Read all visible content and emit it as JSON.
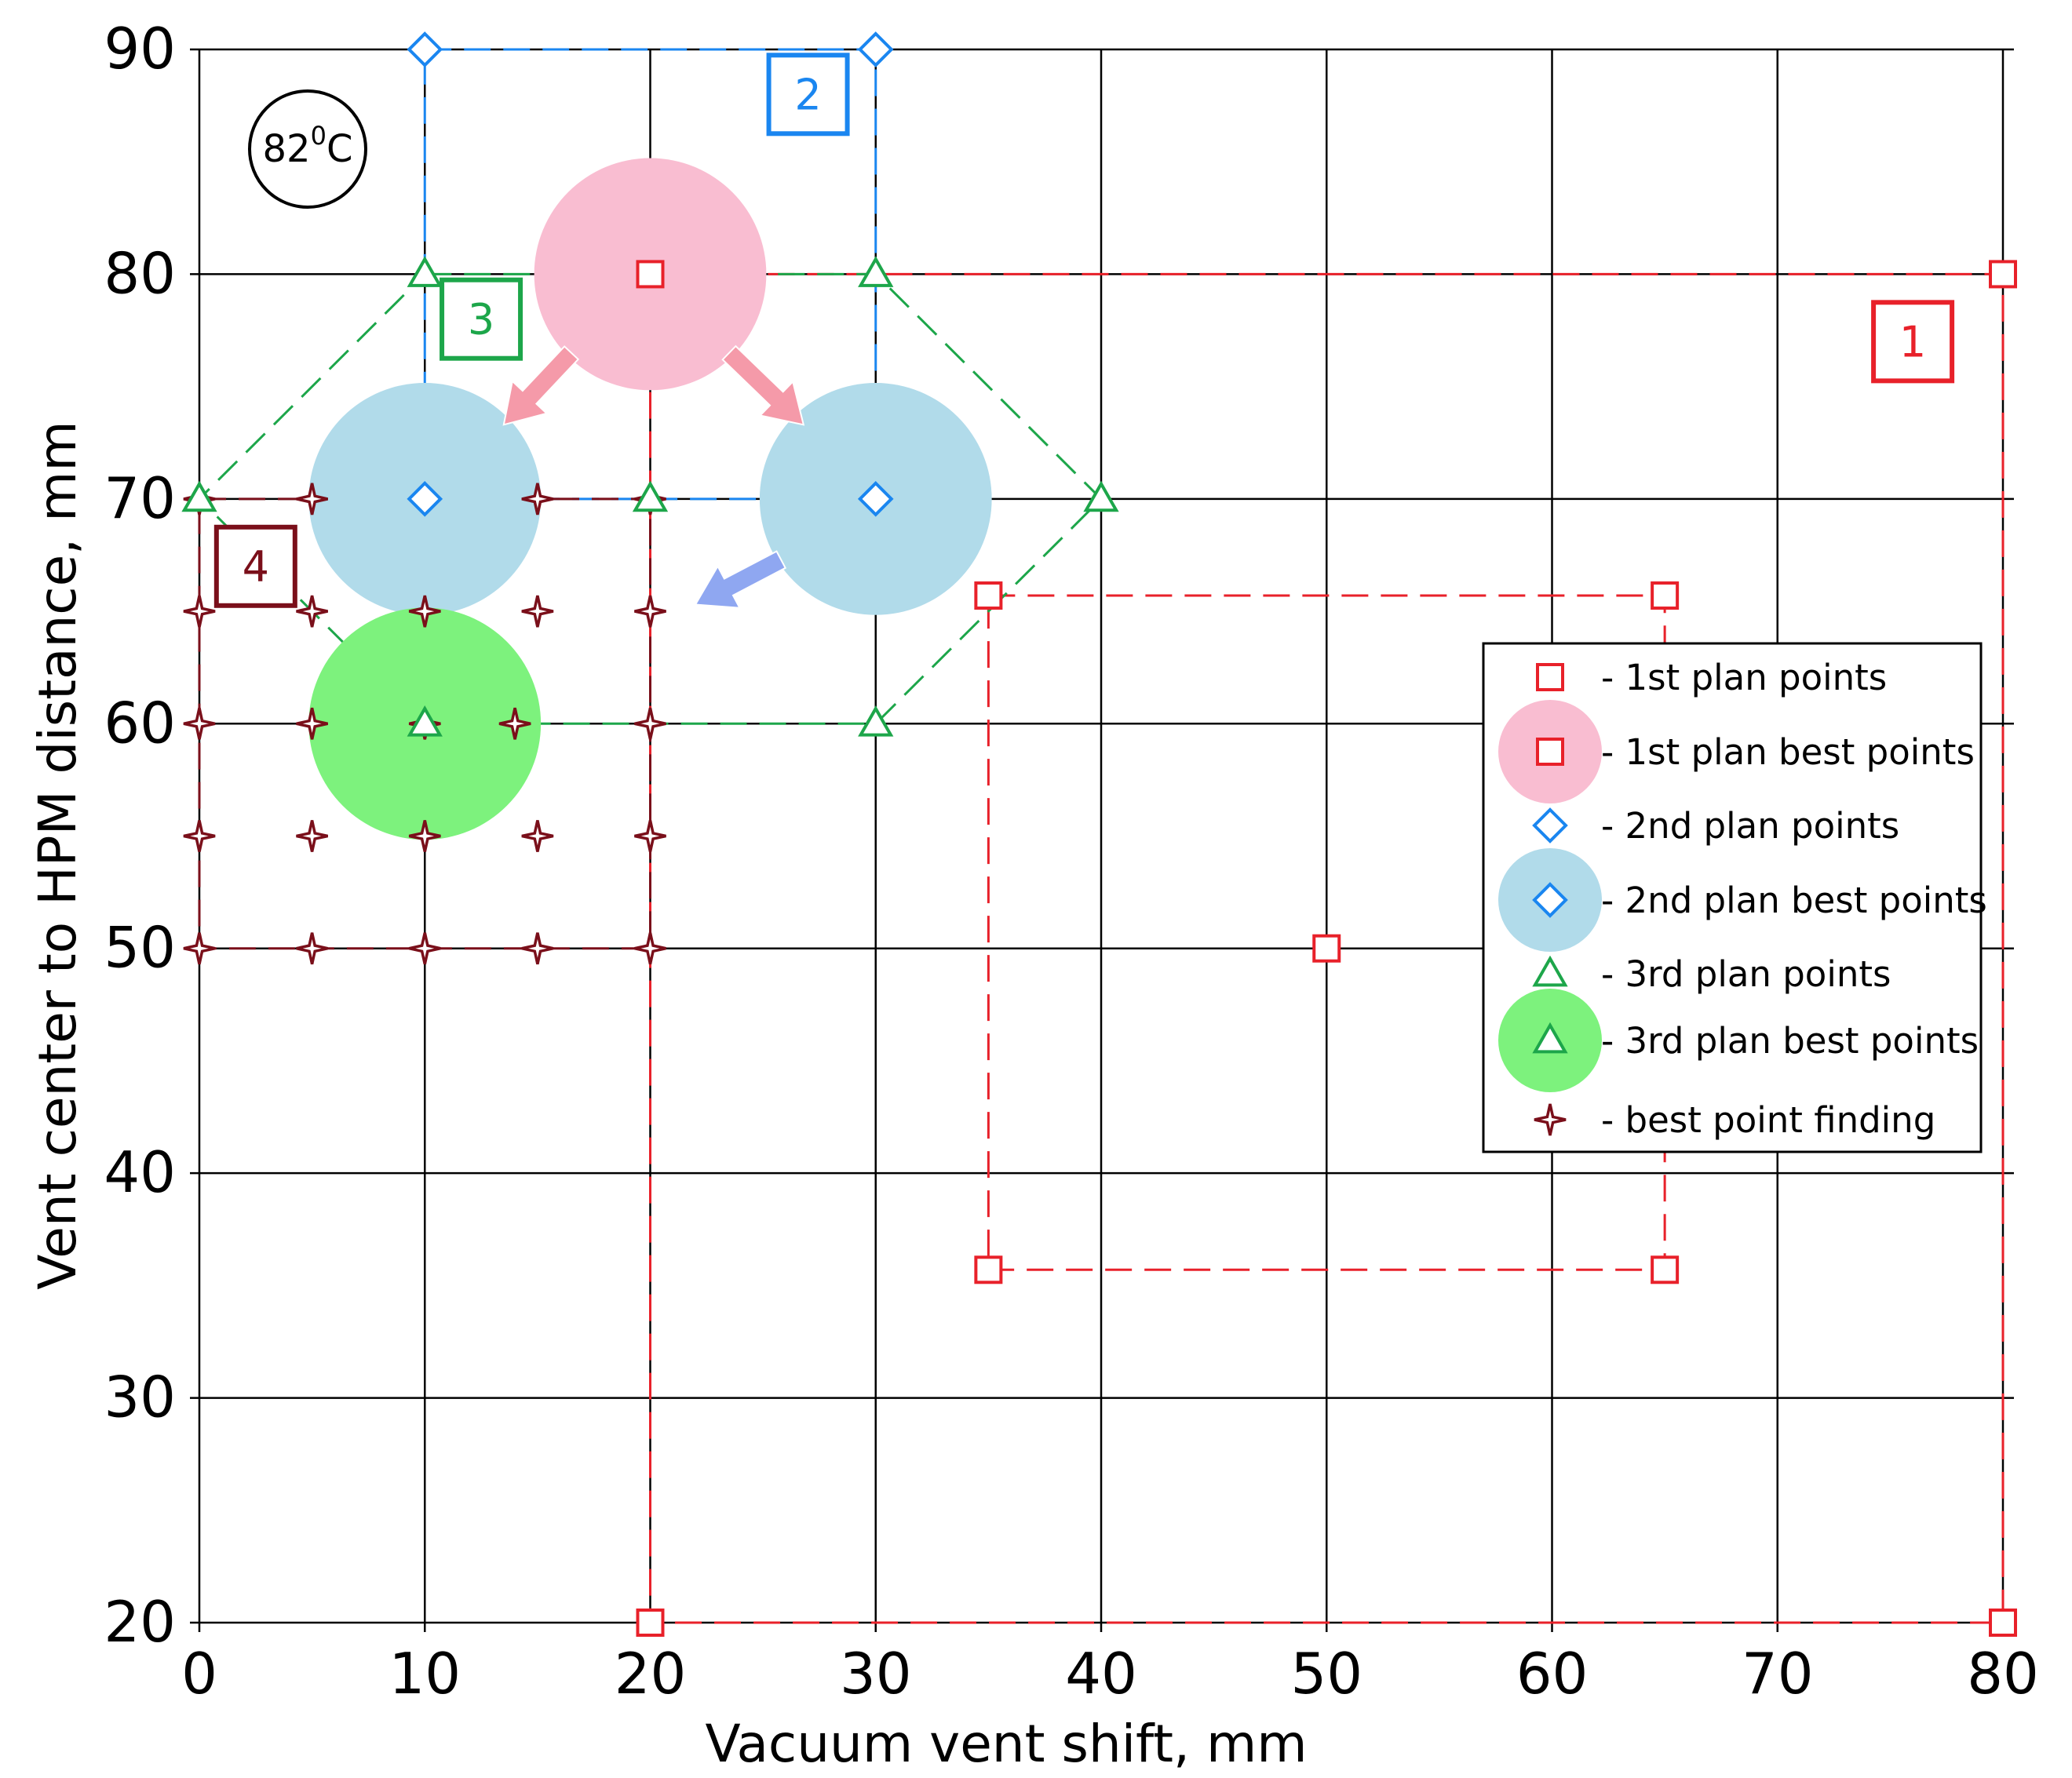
{
  "chart_data": {
    "type": "scatter",
    "xlabel": "Vacuum vent shift, mm",
    "ylabel": "Vent center to HPM distance, mm",
    "xlim": [
      0,
      80
    ],
    "ylim": [
      20,
      90
    ],
    "xticks": [
      "0",
      "10",
      "20",
      "30",
      "40",
      "50",
      "60",
      "70",
      "80"
    ],
    "yticks": [
      "20",
      "30",
      "40",
      "50",
      "60",
      "70",
      "80",
      "90"
    ],
    "grid": true,
    "legend_position": "right",
    "temperature_badge": {
      "value": "82",
      "sup": "0",
      "unit": "C"
    },
    "plan_labels": [
      {
        "text": "1",
        "x": 76,
        "y": 77,
        "color": "#e8212a"
      },
      {
        "text": "2",
        "x": 27,
        "y": 88,
        "color": "#1a86f0"
      },
      {
        "text": "3",
        "x": 12.5,
        "y": 78,
        "color": "#1da64a"
      },
      {
        "text": "4",
        "x": 2.5,
        "y": 67,
        "color": "#7a0f1a"
      }
    ],
    "series": [
      {
        "name": "- 1st plan points",
        "marker": "square",
        "color": "#e8212a",
        "points": [
          [
            20,
            80
          ],
          [
            80,
            80
          ],
          [
            20,
            20
          ],
          [
            80,
            20
          ],
          [
            35,
            65.7
          ],
          [
            65,
            65.7
          ],
          [
            35,
            35.7
          ],
          [
            65,
            35.7
          ],
          [
            50,
            50
          ]
        ]
      },
      {
        "name": "- 1st plan best points",
        "marker": "square",
        "color": "#e8212a",
        "fill": "#f9bdd1",
        "points": [
          [
            20,
            80
          ]
        ]
      },
      {
        "name": "- 2nd plan points",
        "marker": "diamond",
        "color": "#1a86f0",
        "points": [
          [
            10,
            90
          ],
          [
            30,
            90
          ],
          [
            10,
            70
          ],
          [
            30,
            70
          ]
        ]
      },
      {
        "name": "- 2nd plan best points",
        "marker": "diamond",
        "color": "#1a86f0",
        "fill": "#b1dbea",
        "points": [
          [
            10,
            70
          ],
          [
            30,
            70
          ]
        ]
      },
      {
        "name": "- 3rd plan points",
        "marker": "triangle",
        "color": "#1da64a",
        "points": [
          [
            10,
            80
          ],
          [
            30,
            80
          ],
          [
            0,
            70
          ],
          [
            20,
            70
          ],
          [
            40,
            70
          ],
          [
            10,
            60
          ],
          [
            30,
            60
          ]
        ]
      },
      {
        "name": "- 3rd plan best points",
        "marker": "triangle",
        "color": "#1da64a",
        "fill": "#7df27d",
        "points": [
          [
            10,
            60
          ]
        ]
      },
      {
        "name": "- best point finding",
        "marker": "star",
        "color": "#7a0f1a",
        "points": [
          [
            0,
            70
          ],
          [
            5,
            70
          ],
          [
            10,
            70
          ],
          [
            15,
            70
          ],
          [
            20,
            70
          ],
          [
            0,
            65
          ],
          [
            5,
            65
          ],
          [
            10,
            65
          ],
          [
            15,
            65
          ],
          [
            20,
            65
          ],
          [
            0,
            60
          ],
          [
            5,
            60
          ],
          [
            10,
            60
          ],
          [
            14,
            60
          ],
          [
            20,
            60
          ],
          [
            0,
            55
          ],
          [
            5,
            55
          ],
          [
            10,
            55
          ],
          [
            15,
            55
          ],
          [
            20,
            55
          ],
          [
            0,
            50
          ],
          [
            5,
            50
          ],
          [
            10,
            50
          ],
          [
            15,
            50
          ],
          [
            20,
            50
          ]
        ]
      }
    ],
    "plan_regions": [
      {
        "name": "plan-1-outer",
        "color": "#e8212a",
        "polygon": [
          [
            20,
            80
          ],
          [
            80,
            80
          ],
          [
            80,
            20
          ],
          [
            20,
            20
          ]
        ]
      },
      {
        "name": "plan-1-inner",
        "color": "#e8212a",
        "polygon": [
          [
            35,
            65.7
          ],
          [
            65,
            65.7
          ],
          [
            65,
            35.7
          ],
          [
            35,
            35.7
          ]
        ]
      },
      {
        "name": "plan-2",
        "color": "#1a86f0",
        "polygon": [
          [
            10,
            90
          ],
          [
            30,
            90
          ],
          [
            30,
            70
          ],
          [
            10,
            70
          ]
        ]
      },
      {
        "name": "plan-3",
        "color": "#1da64a",
        "polygon": [
          [
            10,
            80
          ],
          [
            30,
            80
          ],
          [
            40,
            70
          ],
          [
            30,
            60
          ],
          [
            10,
            60
          ],
          [
            0,
            70
          ]
        ]
      },
      {
        "name": "plan-4",
        "color": "#7a0f1a",
        "polygon": [
          [
            0,
            70
          ],
          [
            20,
            70
          ],
          [
            20,
            50
          ],
          [
            0,
            50
          ]
        ]
      }
    ],
    "best_circles": [
      {
        "x": 20,
        "y": 80,
        "r": 5.2,
        "fill": "#f9bdd1"
      },
      {
        "x": 10,
        "y": 70,
        "r": 5.2,
        "fill": "#b1dbea"
      },
      {
        "x": 30,
        "y": 70,
        "r": 5.2,
        "fill": "#b1dbea"
      },
      {
        "x": 10,
        "y": 60,
        "r": 5.2,
        "fill": "#7df27d"
      }
    ],
    "arrows": [
      {
        "from": [
          16.5,
          76.5
        ],
        "to": [
          13.5,
          73.3
        ],
        "fill": "#f59aa9"
      },
      {
        "from": [
          23.5,
          76.5
        ],
        "to": [
          26.8,
          73.3
        ],
        "fill": "#f59aa9"
      },
      {
        "from": [
          25.8,
          67.3
        ],
        "to": [
          22,
          65.3
        ],
        "fill": "#8fa7f1"
      }
    ]
  }
}
